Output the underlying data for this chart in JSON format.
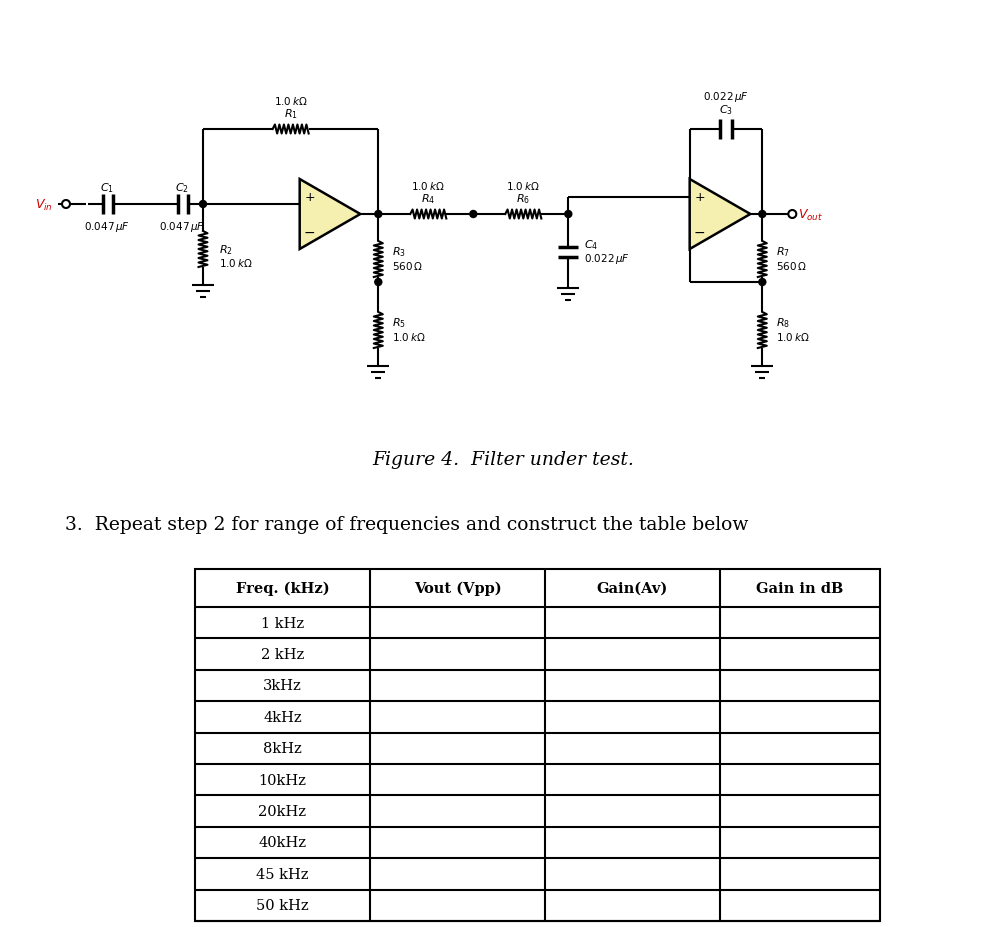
{
  "figure_caption": "Figure 4.  Filter under test.",
  "instruction": "3.  Repeat step 2 for range of frequencies and construct the table below",
  "table_headers": [
    "Freq. (kHz)",
    "Vout (Vpp)",
    "Gain(Av)",
    "Gain in dB"
  ],
  "table_rows": [
    "1 kHz",
    "2 kHz",
    "3kHz",
    "4kHz",
    "8kHz",
    "10kHz",
    "20kHz",
    "40kHz",
    "45 kHz",
    "50 kHz"
  ],
  "bg_color": "#ffffff",
  "opamp_fill": "#f5f0b0",
  "line_color": "#000000",
  "vin_color": "#cc0000",
  "vout_color": "#cc0000",
  "lw": 1.5,
  "fig_width": 10.06,
  "fig_height": 9.28,
  "dpi": 100
}
